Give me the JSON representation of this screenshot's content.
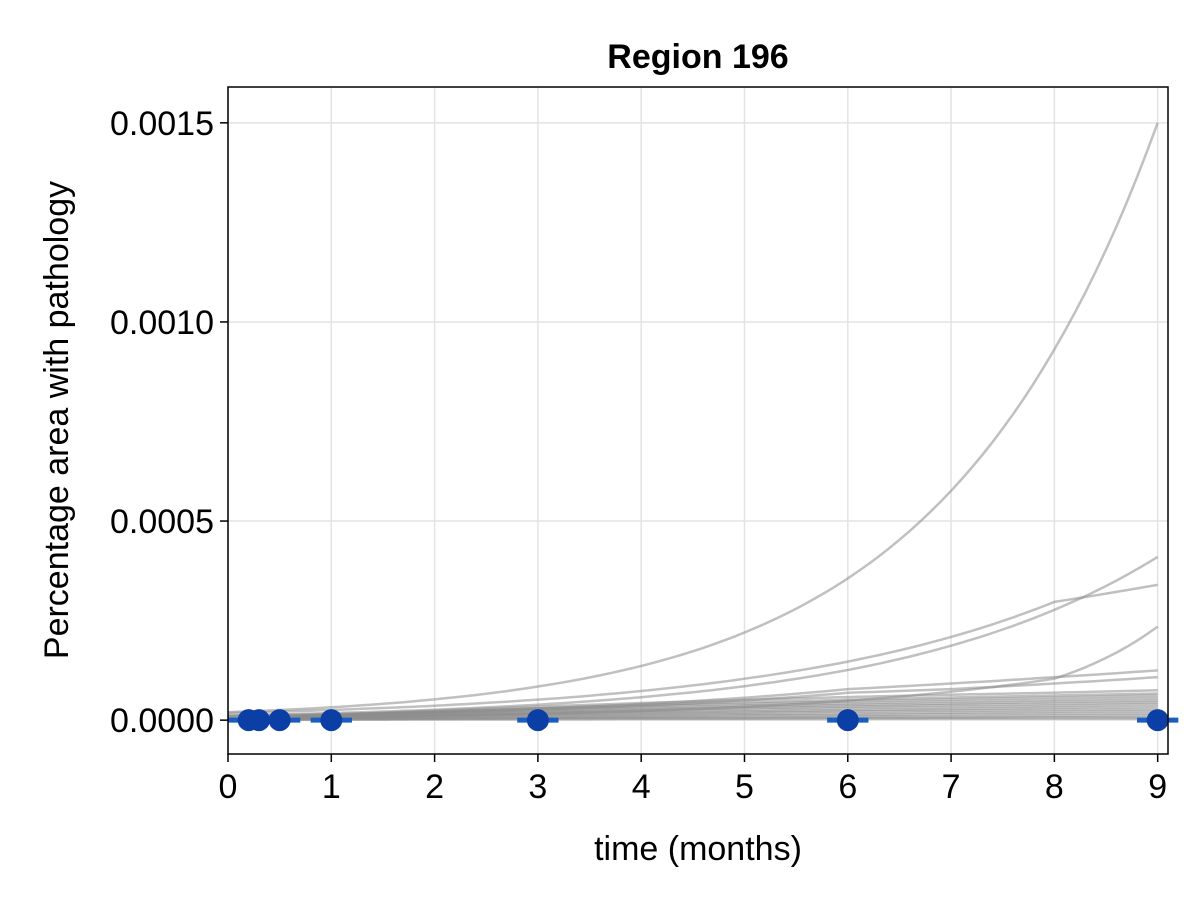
{
  "chart_data": {
    "type": "line",
    "title": "Region 196",
    "xlabel": "time (months)",
    "ylabel": "Percentage area with pathology",
    "xlim": [
      0,
      9.1
    ],
    "ylim": [
      -8.5e-05,
      0.00159
    ],
    "x_ticks": [
      0,
      1,
      2,
      3,
      4,
      5,
      6,
      7,
      8,
      9
    ],
    "x_tick_labels": [
      "0",
      "1",
      "2",
      "3",
      "4",
      "5",
      "6",
      "7",
      "8",
      "9"
    ],
    "y_ticks": [
      0,
      0.0005,
      0.001,
      0.0015
    ],
    "y_tick_labels": [
      "0.0000",
      "0.0005",
      "0.0010",
      "0.0015"
    ],
    "grid": true,
    "legend": "none",
    "colors": {
      "simulations": "#8c8c8c",
      "observed": "#0b3fa6",
      "error_bar": "#1a5cc0",
      "grid": "#e3e3e3"
    },
    "simulation_series": [
      {
        "growth": "exponential",
        "x": [
          0,
          1,
          2,
          3,
          4,
          5,
          6,
          7,
          8,
          9
        ],
        "y": [
          2e-05,
          3.23e-05,
          5.22e-05,
          8.44e-05,
          0.000136,
          0.00022,
          0.000356,
          0.000576,
          0.000931,
          0.0015
        ]
      },
      {
        "growth": "exponential",
        "x": [
          0,
          1,
          2,
          3,
          4,
          5,
          6,
          7,
          8,
          9
        ],
        "y": [
          1.2e-05,
          1.78e-05,
          2.63e-05,
          3.89e-05,
          5.76e-05,
          8.53e-05,
          0.000126,
          0.000187,
          0.000277,
          0.00041
        ]
      },
      {
        "growth": "exponential",
        "x": [
          0,
          1,
          2,
          3,
          4,
          5,
          6,
          7,
          8,
          9
        ],
        "y": [
          1.8e-05,
          2.56e-05,
          3.63e-05,
          5.15e-05,
          7.31e-05,
          0.000104,
          0.000147,
          0.000209,
          0.000297,
          0.00034
        ]
      },
      {
        "growth": "exponential",
        "x": [
          0,
          1,
          2,
          3,
          4,
          5,
          6,
          7,
          8,
          9
        ],
        "y": [
          6e-06,
          8e-06,
          1.13e-05,
          1.61e-05,
          2.31e-05,
          3.35e-05,
          4.89e-05,
          7.14e-05,
          0.000104,
          0.000235
        ]
      },
      {
        "growth": "exponential",
        "x": [
          0,
          1,
          2,
          3,
          4,
          5,
          6,
          7,
          8,
          9
        ],
        "y": [
          1.1e-05,
          1.53e-05,
          2.12e-05,
          2.94e-05,
          4.07e-05,
          5.63e-05,
          7.79e-05,
          9.2e-05,
          0.000108,
          0.000125
        ]
      },
      {
        "growth": "exponential",
        "x": [
          0,
          1,
          2,
          3,
          4,
          5,
          6,
          7,
          8,
          9
        ],
        "y": [
          1e-05,
          1.38e-05,
          1.9e-05,
          2.62e-05,
          3.61e-05,
          4.98e-05,
          6.87e-05,
          7.8e-05,
          9.2e-05,
          0.000108
        ]
      },
      {
        "growth": "saturating",
        "x": [
          0,
          1,
          2,
          3,
          4,
          5,
          6,
          7,
          8,
          9
        ],
        "y": [
          4e-06,
          1.4e-05,
          2.4e-05,
          3.4e-05,
          4.3e-05,
          5.1e-05,
          5.8e-05,
          6.4e-05,
          6.9e-05,
          7.5e-05
        ]
      },
      {
        "growth": "saturating",
        "x": [
          0,
          1,
          2,
          3,
          4,
          5,
          6,
          7,
          8,
          9
        ],
        "y": [
          4e-06,
          1.3e-05,
          2.2e-05,
          3e-05,
          3.8e-05,
          4.5e-05,
          5.1e-05,
          5.7e-05,
          6.2e-05,
          6.7e-05
        ]
      },
      {
        "growth": "saturating",
        "x": [
          0,
          1,
          2,
          3,
          4,
          5,
          6,
          7,
          8,
          9
        ],
        "y": [
          4e-06,
          1.2e-05,
          2e-05,
          2.8e-05,
          3.5e-05,
          4.1e-05,
          4.7e-05,
          5.2e-05,
          5.7e-05,
          6.2e-05
        ]
      },
      {
        "growth": "saturating",
        "x": [
          0,
          1,
          2,
          3,
          4,
          5,
          6,
          7,
          8,
          9
        ],
        "y": [
          3e-06,
          1.1e-05,
          1.8e-05,
          2.5e-05,
          3.1e-05,
          3.7e-05,
          4.2e-05,
          4.7e-05,
          5.1e-05,
          5.6e-05
        ]
      },
      {
        "growth": "saturating",
        "x": [
          0,
          1,
          2,
          3,
          4,
          5,
          6,
          7,
          8,
          9
        ],
        "y": [
          3e-06,
          1e-05,
          1.6e-05,
          2.2e-05,
          2.8e-05,
          3.3e-05,
          3.8e-05,
          4.2e-05,
          4.6e-05,
          5e-05
        ]
      },
      {
        "growth": "saturating",
        "x": [
          0,
          1,
          2,
          3,
          4,
          5,
          6,
          7,
          8,
          9
        ],
        "y": [
          3e-06,
          9e-06,
          1.5e-05,
          2e-05,
          2.5e-05,
          3e-05,
          3.4e-05,
          3.8e-05,
          4.1e-05,
          4.5e-05
        ]
      },
      {
        "growth": "saturating",
        "x": [
          0,
          1,
          2,
          3,
          4,
          5,
          6,
          7,
          8,
          9
        ],
        "y": [
          3e-06,
          8e-06,
          1.3e-05,
          1.8e-05,
          2.2e-05,
          2.6e-05,
          3e-05,
          3.3e-05,
          3.6e-05,
          4e-05
        ]
      },
      {
        "growth": "saturating",
        "x": [
          0,
          1,
          2,
          3,
          4,
          5,
          6,
          7,
          8,
          9
        ],
        "y": [
          2e-06,
          7e-06,
          1.1e-05,
          1.5e-05,
          1.9e-05,
          2.2e-05,
          2.5e-05,
          2.8e-05,
          3.1e-05,
          3.4e-05
        ]
      },
      {
        "growth": "saturating",
        "x": [
          0,
          1,
          2,
          3,
          4,
          5,
          6,
          7,
          8,
          9
        ],
        "y": [
          2e-06,
          6e-06,
          1e-05,
          1.3e-05,
          1.6e-05,
          1.9e-05,
          2.2e-05,
          2.4e-05,
          2.6e-05,
          2.8e-05
        ]
      },
      {
        "growth": "saturating",
        "x": [
          0,
          1,
          2,
          3,
          4,
          5,
          6,
          7,
          8,
          9
        ],
        "y": [
          2e-06,
          5e-06,
          8e-06,
          1.1e-05,
          1.3e-05,
          1.5e-05,
          1.7e-05,
          1.9e-05,
          2.1e-05,
          2.3e-05
        ]
      },
      {
        "growth": "saturating",
        "x": [
          0,
          1,
          2,
          3,
          4,
          5,
          6,
          7,
          8,
          9
        ],
        "y": [
          1e-06,
          4e-06,
          6e-06,
          8e-06,
          1e-05,
          1.2e-05,
          1.3e-05,
          1.5e-05,
          1.6e-05,
          1.7e-05
        ]
      },
      {
        "growth": "saturating",
        "x": [
          0,
          1,
          2,
          3,
          4,
          5,
          6,
          7,
          8,
          9
        ],
        "y": [
          1e-06,
          3e-06,
          4e-06,
          6e-06,
          7e-06,
          8e-06,
          9e-06,
          1e-05,
          1.1e-05,
          1.2e-05
        ]
      },
      {
        "growth": "saturating",
        "x": [
          0,
          1,
          2,
          3,
          4,
          5,
          6,
          7,
          8,
          9
        ],
        "y": [
          1e-06,
          2e-06,
          3e-06,
          4e-06,
          5e-06,
          5e-06,
          6e-06,
          6e-06,
          7e-06,
          7e-06
        ]
      },
      {
        "growth": "saturating",
        "x": [
          0,
          1,
          2,
          3,
          4,
          5,
          6,
          7,
          8,
          9
        ],
        "y": [
          0,
          1e-06,
          2e-06,
          2e-06,
          3e-06,
          3e-06,
          3e-06,
          4e-06,
          4e-06,
          4e-06
        ]
      }
    ],
    "observations": {
      "x": [
        0.2,
        0.3,
        0.5,
        1,
        3,
        6,
        9
      ],
      "y": [
        0,
        0,
        0,
        0,
        0,
        0,
        0
      ],
      "x_err": [
        0.2,
        0.2,
        0.2,
        0.2,
        0.2,
        0.2,
        0.2
      ]
    }
  }
}
